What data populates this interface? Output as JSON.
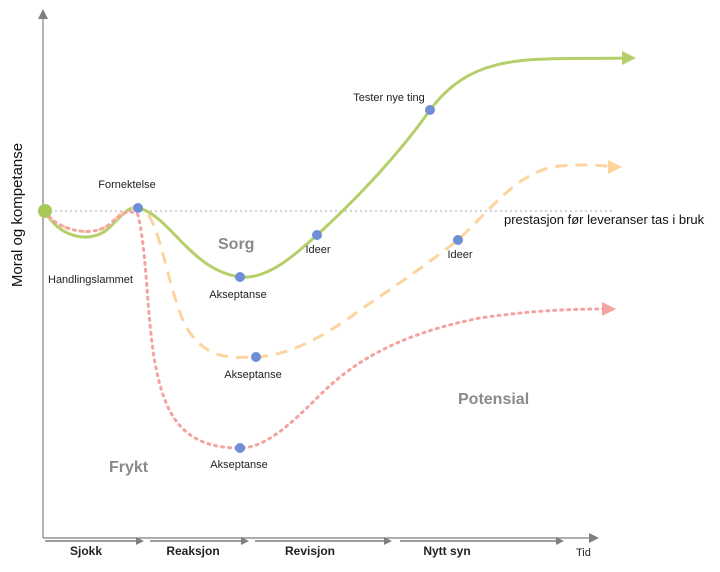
{
  "axes": {
    "y_label": "Moral og kompetanse",
    "x_label": "Tid"
  },
  "baseline": {
    "label": "prestasjon før leveranser tas i bruk"
  },
  "zones": {
    "sorg": "Sorg",
    "frykt": "Frykt",
    "potensial": "Potensial"
  },
  "phases": [
    "Sjokk",
    "Reaksjon",
    "Revisjon",
    "Nytt syn"
  ],
  "curves": [
    {
      "id": "green",
      "style": "solid",
      "color": "#b5cf6b"
    },
    {
      "id": "orange",
      "style": "dashed",
      "color": "#fdd49e"
    },
    {
      "id": "red",
      "style": "dotted",
      "color": "#f4a3a3"
    }
  ],
  "points": [
    {
      "label": "Fornektelse"
    },
    {
      "label": "Handlingslammet"
    },
    {
      "label": "Akseptanse"
    },
    {
      "label": "Ideer"
    },
    {
      "label": "Tester nye ting"
    },
    {
      "label": "Akseptanse"
    },
    {
      "label": "Ideer"
    },
    {
      "label": "Akseptanse"
    }
  ],
  "colors": {
    "point": "#6e8fd6",
    "start_point": "#a8c85a",
    "axis": "#7f7f7f",
    "baseline": "#a6a6a6"
  }
}
